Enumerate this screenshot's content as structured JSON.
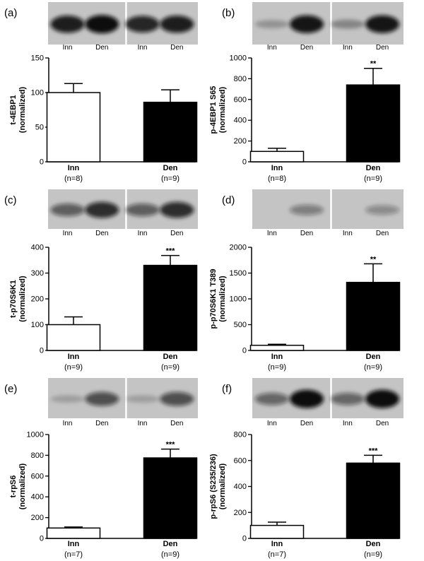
{
  "chart_data": [
    {
      "panel": "(a)",
      "type": "bar",
      "blot_lanes": [
        "Inn",
        "Den",
        "Inn",
        "Den"
      ],
      "blot_bands": [
        0.9,
        1.0,
        0.85,
        0.9
      ],
      "categories": [
        "Inn",
        "Den"
      ],
      "n_labels": [
        "(n=8)",
        "(n=9)"
      ],
      "values": [
        100,
        86
      ],
      "errors": [
        13,
        18
      ],
      "significance": [
        "",
        ""
      ],
      "ylabel_lines": [
        "t-4EBP1",
        "(normalized)"
      ],
      "ylim": [
        0,
        150
      ],
      "yticks": [
        0,
        50,
        100,
        150
      ],
      "bar_colors": [
        "#ffffff",
        "#000000"
      ]
    },
    {
      "panel": "(b)",
      "type": "bar",
      "blot_lanes": [
        "Inn",
        "Den",
        "Inn",
        "Den"
      ],
      "blot_bands": [
        0.12,
        0.95,
        0.2,
        0.95
      ],
      "categories": [
        "Inn",
        "Den"
      ],
      "n_labels": [
        "(n=8)",
        "(n=9)"
      ],
      "values": [
        100,
        740
      ],
      "errors": [
        30,
        160
      ],
      "significance": [
        "",
        "**"
      ],
      "ylabel_lines": [
        "p-4EBP1 S65",
        "(normalized)"
      ],
      "ylim": [
        0,
        1000
      ],
      "yticks": [
        0,
        200,
        400,
        600,
        800,
        1000
      ],
      "bar_colors": [
        "#ffffff",
        "#000000"
      ]
    },
    {
      "panel": "(c)",
      "type": "bar",
      "blot_lanes": [
        "Inn",
        "Den",
        "Inn",
        "Den"
      ],
      "blot_bands": [
        0.5,
        0.8,
        0.5,
        0.8
      ],
      "categories": [
        "Inn",
        "Den"
      ],
      "n_labels": [
        "(n=9)",
        "(n=9)"
      ],
      "values": [
        100,
        330
      ],
      "errors": [
        30,
        38
      ],
      "significance": [
        "",
        "***"
      ],
      "ylabel_lines": [
        "t-p70S6K1",
        "(normalized)"
      ],
      "ylim": [
        0,
        400
      ],
      "yticks": [
        0,
        100,
        200,
        300,
        400
      ],
      "bar_colors": [
        "#ffffff",
        "#000000"
      ]
    },
    {
      "panel": "(d)",
      "type": "bar",
      "blot_lanes": [
        "Inn",
        "Den",
        "Inn",
        "Den"
      ],
      "blot_bands": [
        0.0,
        0.3,
        0.0,
        0.22
      ],
      "categories": [
        "Inn",
        "Den"
      ],
      "n_labels": [
        "(n=9)",
        "(n=9)"
      ],
      "values": [
        100,
        1320
      ],
      "errors": [
        20,
        360
      ],
      "significance": [
        "",
        "**"
      ],
      "ylabel_lines": [
        "p-p70S6K1 T389",
        "(normalized)"
      ],
      "ylim": [
        0,
        2000
      ],
      "yticks": [
        0,
        500,
        1000,
        1500,
        2000
      ],
      "bar_colors": [
        "#ffffff",
        "#000000"
      ]
    },
    {
      "panel": "(e)",
      "type": "bar",
      "blot_lanes": [
        "Inn",
        "Den",
        "Inn",
        "Den"
      ],
      "blot_bands": [
        0.05,
        0.6,
        0.05,
        0.6
      ],
      "categories": [
        "Inn",
        "Den"
      ],
      "n_labels": [
        "(n=7)",
        "(n=9)"
      ],
      "values": [
        100,
        775
      ],
      "errors": [
        10,
        85
      ],
      "significance": [
        "",
        "***"
      ],
      "ylabel_lines": [
        "t-rpS6",
        "(normalized)"
      ],
      "ylim": [
        0,
        1000
      ],
      "yticks": [
        0,
        200,
        400,
        600,
        800,
        1000
      ],
      "bar_colors": [
        "#ffffff",
        "#000000"
      ]
    },
    {
      "panel": "(f)",
      "type": "bar",
      "blot_lanes": [
        "Inn",
        "Den",
        "Inn",
        "Den"
      ],
      "blot_bands": [
        0.45,
        1.0,
        0.45,
        1.0
      ],
      "categories": [
        "Inn",
        "Den"
      ],
      "n_labels": [
        "(n=7)",
        "(n=9)"
      ],
      "values": [
        100,
        580
      ],
      "errors": [
        25,
        60
      ],
      "significance": [
        "",
        "***"
      ],
      "ylabel_lines": [
        "p-rpS6 (S235/236)",
        "(normalized)"
      ],
      "ylim": [
        0,
        800
      ],
      "yticks": [
        0,
        200,
        400,
        600,
        800
      ],
      "bar_colors": [
        "#ffffff",
        "#000000"
      ]
    }
  ]
}
